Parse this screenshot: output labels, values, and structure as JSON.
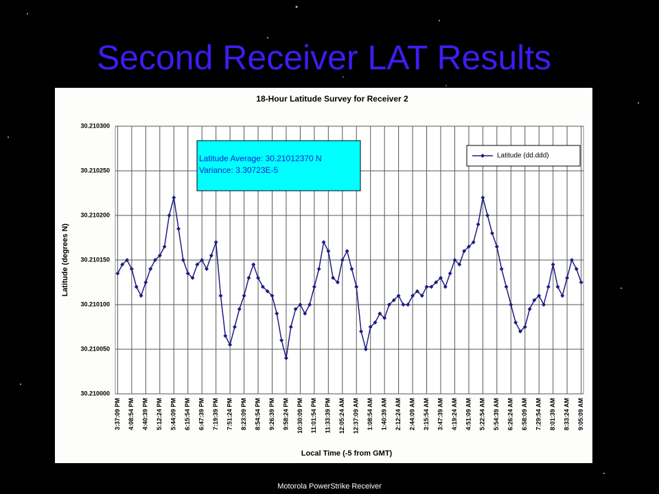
{
  "slide_title": "Second Receiver LAT Results",
  "footer": "Motorola PowerStrike Receiver",
  "chart_data": {
    "type": "line",
    "title": "18-Hour Latitude Survey for Receiver 2",
    "x_label": "Local Time (-5 from GMT)",
    "y_label": "Latitude (degrees N)",
    "annotations": [
      "Latitude Average: 30.21012370 N",
      "Variance: 3.30723E-5"
    ],
    "legend": "top-right",
    "grid": true,
    "categories": [
      "3:37:09 PM",
      null,
      null,
      "4:08:54 PM",
      null,
      null,
      "4:40:39 PM",
      null,
      null,
      "5:12:24 PM",
      null,
      null,
      "5:44:09 PM",
      null,
      null,
      "6:15:54 PM",
      null,
      null,
      "6:47:39 PM",
      null,
      null,
      "7:19:39 PM",
      null,
      null,
      "7:51:24 PM",
      null,
      null,
      "8:23:09 PM",
      null,
      null,
      "8:54:54 PM",
      null,
      null,
      "9:26:39 PM",
      null,
      null,
      "9:58:24 PM",
      null,
      null,
      "10:30:09 PM",
      null,
      null,
      "11:01:54 PM",
      null,
      null,
      "11:33:39 PM",
      null,
      null,
      "12:05:24 AM",
      null,
      null,
      "12:37:09 AM",
      null,
      null,
      "1:08:54 AM",
      null,
      null,
      "1:40:39 AM",
      null,
      null,
      "2:12:24 AM",
      null,
      null,
      "2:44:09 AM",
      null,
      null,
      "3:15:54 AM",
      null,
      null,
      "3:47:39 AM",
      null,
      null,
      "4:19:24 AM",
      null,
      null,
      "4:51:09 AM",
      null,
      null,
      "5:22:54 AM",
      null,
      null,
      "5:54:39 AM",
      null,
      null,
      "6:26:24 AM",
      null,
      null,
      "6:58:09 AM",
      null,
      null,
      "7:29:54 AM",
      null,
      null,
      "8:01:39 AM",
      null,
      null,
      "8:33:24 AM",
      null,
      null,
      "9:05:09 AM"
    ],
    "series": [
      {
        "name": "Latitude (dd.ddd)",
        "color": "#1c1c80",
        "values": [
          30.210135,
          30.210145,
          30.21015,
          30.21014,
          30.21012,
          30.21011,
          30.210125,
          30.21014,
          30.21015,
          30.210155,
          30.210165,
          30.2102,
          30.21022,
          30.210185,
          30.21015,
          30.210135,
          30.21013,
          30.210145,
          30.21015,
          30.21014,
          30.210155,
          30.21017,
          30.21011,
          30.210065,
          30.210055,
          30.210075,
          30.210095,
          30.21011,
          30.21013,
          30.210145,
          30.21013,
          30.21012,
          30.210115,
          30.21011,
          30.21009,
          30.21006,
          30.21004,
          30.210075,
          30.210095,
          30.2101,
          30.21009,
          30.2101,
          30.21012,
          30.21014,
          30.21017,
          30.21016,
          30.21013,
          30.210125,
          30.21015,
          30.21016,
          30.21014,
          30.21012,
          30.21007,
          30.21005,
          30.210075,
          30.21008,
          30.21009,
          30.210085,
          30.2101,
          30.210105,
          30.21011,
          30.2101,
          30.2101,
          30.21011,
          30.210115,
          30.21011,
          30.21012,
          30.21012,
          30.210125,
          30.21013,
          30.21012,
          30.210135,
          30.21015,
          30.210145,
          30.21016,
          30.210165,
          30.21017,
          30.21019,
          30.21022,
          30.2102,
          30.21018,
          30.210165,
          30.21014,
          30.21012,
          30.2101,
          30.21008,
          30.21007,
          30.210075,
          30.210095,
          30.210105,
          30.21011,
          30.2101,
          30.21012,
          30.210145,
          30.21012,
          30.21011,
          30.21013,
          30.21015,
          30.21014,
          30.210125
        ]
      }
    ],
    "ylim": [
      30.21,
      30.2103
    ],
    "yticks": [
      {
        "value": 30.21,
        "label": "30.210000"
      },
      {
        "value": 30.21005,
        "label": "30.210050"
      },
      {
        "value": 30.2101,
        "label": "30.210100"
      },
      {
        "value": 30.21015,
        "label": "30.210150"
      },
      {
        "value": 30.2102,
        "label": "30.210200"
      },
      {
        "value": 30.21025,
        "label": "30.210250"
      },
      {
        "value": 30.2103,
        "label": "30.210300"
      }
    ]
  }
}
